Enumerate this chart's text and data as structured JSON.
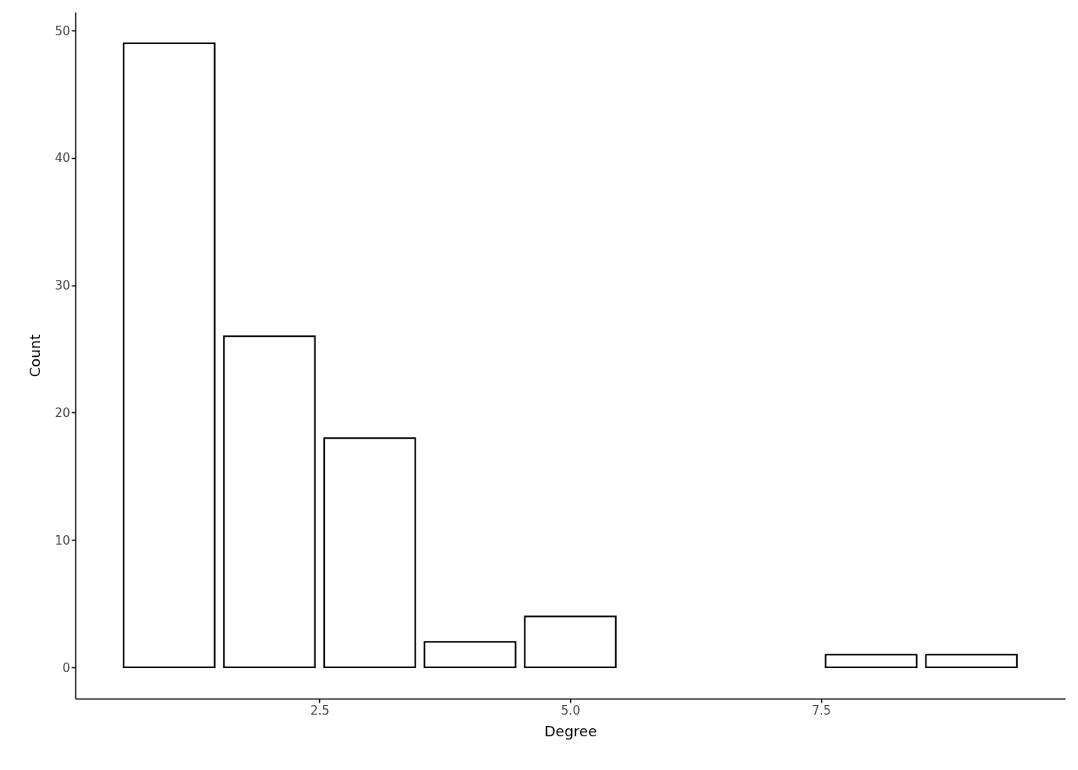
{
  "chart_data": {
    "type": "bar",
    "xlabel": "Degree",
    "ylabel": "Count",
    "x": [
      1,
      2,
      3,
      4,
      5,
      8,
      9
    ],
    "values": [
      49,
      26,
      18,
      2,
      4,
      1,
      1
    ],
    "color": "#ffffff",
    "xlim": [
      0.105,
      9.895
    ],
    "xticks": [
      2.5,
      {
        "value": 5,
        "label": "5.0"
      },
      7.5
    ],
    "ylim": [
      -2.45,
      51.45
    ],
    "yticks": [
      0,
      10,
      20,
      30,
      40,
      50
    ],
    "grid": false
  }
}
